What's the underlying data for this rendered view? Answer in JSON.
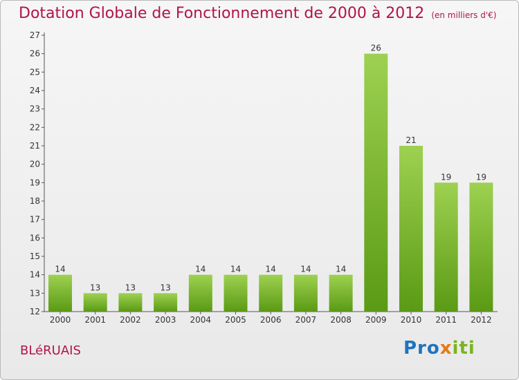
{
  "header": {
    "title": "Dotation Globale de Fonctionnement de 2000 à 2012",
    "unit": "(en milliers d'€)"
  },
  "footer": {
    "commune": "BLéRUAIS",
    "brand": {
      "p1": "Pro",
      "p2": "x",
      "p3": "iti"
    }
  },
  "colors": {
    "accent": "#b0144b",
    "bar_top": "#9ed151",
    "bar_bottom": "#5a9a14"
  },
  "chart_data": {
    "type": "bar",
    "title": "Dotation Globale de Fonctionnement de 2000 à 2012",
    "subtitle": "(en milliers d'€)",
    "xlabel": "",
    "ylabel": "",
    "categories": [
      "2000",
      "2001",
      "2002",
      "2003",
      "2004",
      "2005",
      "2006",
      "2007",
      "2008",
      "2009",
      "2010",
      "2011",
      "2012"
    ],
    "values": [
      14,
      13,
      13,
      13,
      14,
      14,
      14,
      14,
      14,
      26,
      21,
      19,
      19
    ],
    "ylim": [
      12,
      27
    ],
    "yticks": [
      12,
      13,
      14,
      15,
      16,
      17,
      18,
      19,
      20,
      21,
      22,
      23,
      24,
      25,
      26,
      27
    ],
    "grid": false,
    "legend": "none"
  }
}
